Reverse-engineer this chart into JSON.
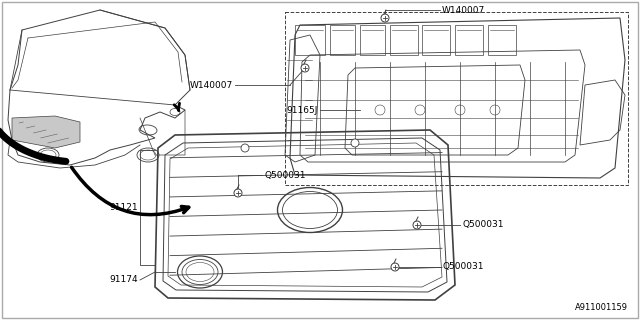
{
  "background_color": "#ffffff",
  "line_color": "#404040",
  "text_color": "#000000",
  "font_size": 6.5,
  "diagram_id": "A911001159",
  "labels": {
    "W140007_top": "W140007",
    "W140007_mid": "W140007",
    "Q500031_left": "Q500031",
    "Q500031_mid": "Q500031",
    "Q500031_bot": "Q500031",
    "91165J": "91165J",
    "91121": "91121",
    "91174": "91174"
  }
}
